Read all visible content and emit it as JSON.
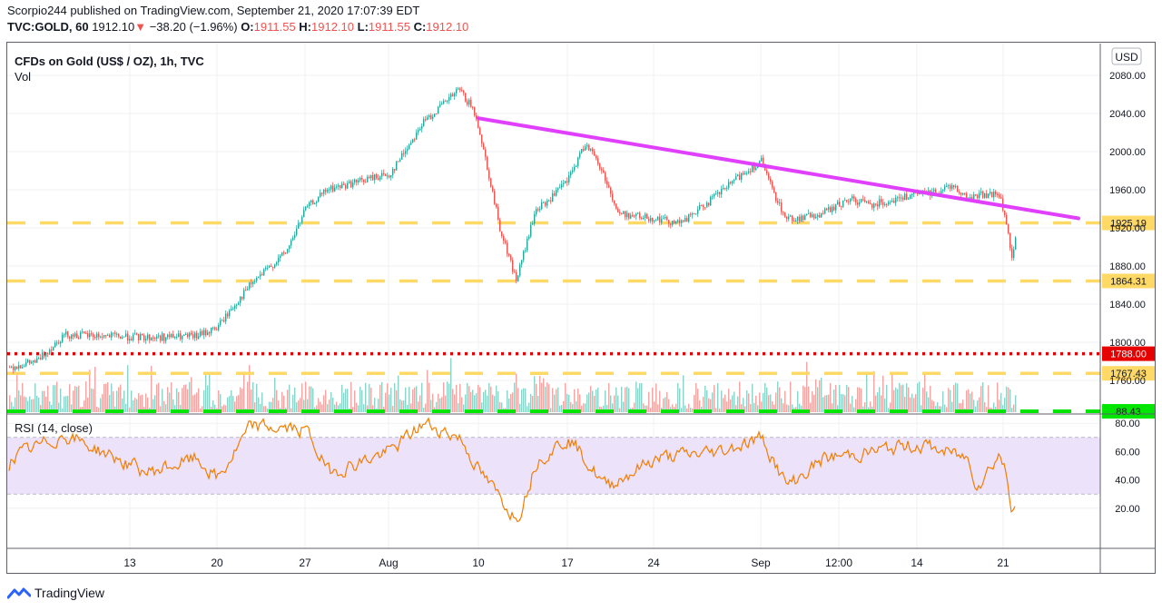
{
  "header": {
    "line1": "Scorpio244 published on TradingView.com, September 21, 2020 17:07:39 EDT",
    "symbol": "TVC:GOLD, 60",
    "last": "1912.10",
    "change": "−38.20 (−1.96%)",
    "o_label": "O:",
    "o_value": "1911.55",
    "h_label": "H:",
    "h_value": "1912.10",
    "l_label": "L:",
    "l_value": "1911.55",
    "c_label": "C:",
    "c_value": "1912.10"
  },
  "footer": {
    "brand": "TradingView"
  },
  "colors": {
    "up": "#26a69a",
    "down": "#ef5350",
    "trendline": "#e040fb",
    "support": "#ffd966",
    "resistance_red": "#e60000",
    "rsi_line": "#f57c00",
    "rsi_band": "#ece3fb",
    "rsi_green": "#00e600"
  },
  "chart_data": [
    {
      "type": "candlestick",
      "title": "CFDs on Gold (US$ / OZ), 1h, TVC",
      "volume_label": "Vol",
      "currency": "USD",
      "x_ticks": [
        "13",
        "20",
        "27",
        "Aug",
        "10",
        "17",
        "24",
        "Sep",
        "12:00",
        "14",
        "21"
      ],
      "y_ticks": [
        1760,
        1800,
        1840,
        1880,
        1920,
        1960,
        2000,
        2040,
        2080
      ],
      "y_range": [
        1740,
        2110
      ],
      "price_path": [
        {
          "x": "Jul 7",
          "y": 1774
        },
        {
          "x": "Jul 9",
          "y": 1780
        },
        {
          "x": "Jul 10",
          "y": 1808
        },
        {
          "x": "Jul 14",
          "y": 1805
        },
        {
          "x": "Jul 17",
          "y": 1806
        },
        {
          "x": "Jul 20",
          "y": 1815
        },
        {
          "x": "Jul 22",
          "y": 1860
        },
        {
          "x": "Jul 24",
          "y": 1895
        },
        {
          "x": "Jul 27",
          "y": 1940
        },
        {
          "x": "Jul 29",
          "y": 1960
        },
        {
          "x": "Jul 31",
          "y": 1975
        },
        {
          "x": "Aug 3",
          "y": 1975
        },
        {
          "x": "Aug 5",
          "y": 2030
        },
        {
          "x": "Aug 7",
          "y": 2065
        },
        {
          "x": "Aug 9",
          "y": 2045
        },
        {
          "x": "Aug 10",
          "y": 2025
        },
        {
          "x": "Aug 11",
          "y": 1920
        },
        {
          "x": "Aug 12",
          "y": 1865
        },
        {
          "x": "Aug 13",
          "y": 1940
        },
        {
          "x": "Aug 14",
          "y": 1945
        },
        {
          "x": "Aug 17",
          "y": 1970
        },
        {
          "x": "Aug 18",
          "y": 2010
        },
        {
          "x": "Aug 19",
          "y": 1975
        },
        {
          "x": "Aug 20",
          "y": 1935
        },
        {
          "x": "Aug 24",
          "y": 1930
        },
        {
          "x": "Aug 26",
          "y": 1925
        },
        {
          "x": "Aug 28",
          "y": 1955
        },
        {
          "x": "Aug 31",
          "y": 1975
        },
        {
          "x": "Sep 1",
          "y": 1990
        },
        {
          "x": "Sep 2",
          "y": 1960
        },
        {
          "x": "Sep 3",
          "y": 1930
        },
        {
          "x": "Sep 7",
          "y": 1930
        },
        {
          "x": "Sep 9",
          "y": 1935
        },
        {
          "x": "Sep 10",
          "y": 1950
        },
        {
          "x": "Sep 11",
          "y": 1945
        },
        {
          "x": "Sep 14",
          "y": 1955
        },
        {
          "x": "Sep 15",
          "y": 1958
        },
        {
          "x": "Sep 16",
          "y": 1965
        },
        {
          "x": "Sep 17",
          "y": 1950
        },
        {
          "x": "Sep 18",
          "y": 1955
        },
        {
          "x": "Sep 20",
          "y": 1955
        },
        {
          "x": "Sep 21 a",
          "y": 1925
        },
        {
          "x": "Sep 21 b",
          "y": 1885
        },
        {
          "x": "Sep 21 c",
          "y": 1912
        }
      ],
      "trendline": [
        {
          "x": "Aug 10",
          "y": 2035
        },
        {
          "x": "Sep 23",
          "y": 1930
        }
      ],
      "price_levels": [
        {
          "label": "1925.19",
          "value": 1925.19,
          "style": "dashed",
          "color": "#ffd966"
        },
        {
          "label": "1864.31",
          "value": 1864.31,
          "style": "dashed",
          "color": "#ffd966"
        },
        {
          "label": "1788.00",
          "value": 1788.0,
          "style": "dotted",
          "color": "#e60000"
        },
        {
          "label": "1767.43",
          "value": 1767.43,
          "style": "dashed",
          "color": "#ffd966"
        }
      ]
    },
    {
      "type": "line",
      "title": "RSI (14, close)",
      "y_ticks": [
        20,
        40,
        60,
        80
      ],
      "y_range": [
        0,
        100
      ],
      "band": [
        30,
        70
      ],
      "level": {
        "label": "88.43",
        "value": 88.43
      },
      "rsi_path": [
        {
          "x": "Jul 7",
          "y": 55
        },
        {
          "x": "Jul 10",
          "y": 72
        },
        {
          "x": "Jul 14",
          "y": 45
        },
        {
          "x": "Jul 17",
          "y": 55
        },
        {
          "x": "Jul 20",
          "y": 40
        },
        {
          "x": "Jul 22",
          "y": 78
        },
        {
          "x": "Jul 27",
          "y": 75
        },
        {
          "x": "Jul 29",
          "y": 45
        },
        {
          "x": "Aug 3",
          "y": 60
        },
        {
          "x": "Aug 5",
          "y": 80
        },
        {
          "x": "Aug 7",
          "y": 70
        },
        {
          "x": "Aug 10",
          "y": 45
        },
        {
          "x": "Aug 12",
          "y": 12
        },
        {
          "x": "Aug 13",
          "y": 55
        },
        {
          "x": "Aug 17",
          "y": 70
        },
        {
          "x": "Aug 19",
          "y": 35
        },
        {
          "x": "Aug 24",
          "y": 55
        },
        {
          "x": "Aug 28",
          "y": 60
        },
        {
          "x": "Sep 1",
          "y": 70
        },
        {
          "x": "Sep 3",
          "y": 35
        },
        {
          "x": "Sep 9",
          "y": 55
        },
        {
          "x": "Sep 11",
          "y": 60
        },
        {
          "x": "Sep 14",
          "y": 65
        },
        {
          "x": "Sep 17",
          "y": 55
        },
        {
          "x": "Sep 18",
          "y": 35
        },
        {
          "x": "Sep 20",
          "y": 60
        },
        {
          "x": "Sep 21 a",
          "y": 40
        },
        {
          "x": "Sep 21 b",
          "y": 12
        },
        {
          "x": "Sep 21 c",
          "y": 33
        }
      ]
    }
  ]
}
